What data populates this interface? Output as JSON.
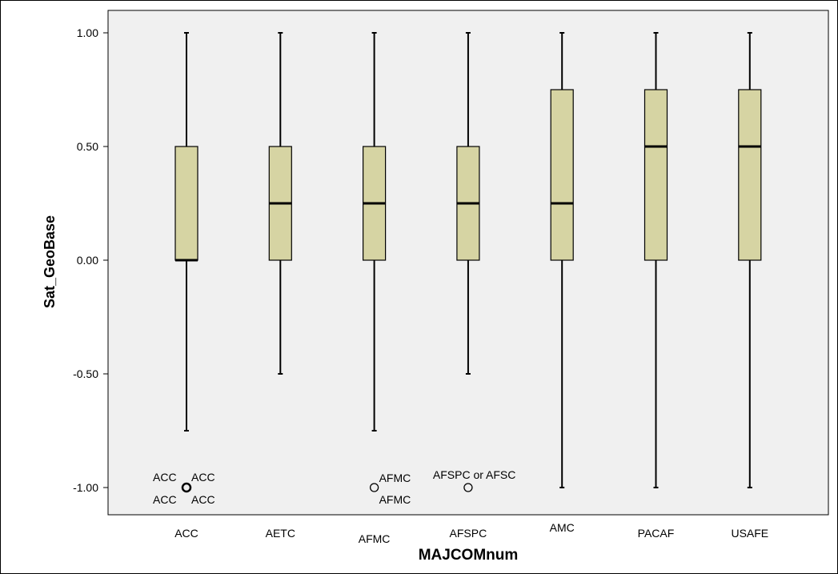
{
  "chart_data": {
    "type": "boxplot",
    "xlabel": "MAJCOMnum",
    "ylabel": "Sat_GeoBase",
    "ylim": [
      -1.12,
      1.12
    ],
    "yticks": [
      1.0,
      0.5,
      0.0,
      -0.5,
      -1.0
    ],
    "ytick_labels": [
      "1.00",
      "0.50",
      "0.00",
      "-0.50",
      "-1.00"
    ],
    "grid": false,
    "colors": {
      "box_fill": "#d6d4a3",
      "plot_bg": "#f0f0f0",
      "stroke": "#000000"
    },
    "categories": [
      "ACC",
      "AETC",
      "AFMC",
      "AFSPC",
      "AMC",
      "PACAF",
      "USAFE"
    ],
    "boxes": [
      {
        "min": -0.75,
        "q1": 0.0,
        "median": 0.0,
        "q3": 0.5,
        "max": 1.0,
        "outliers": [
          {
            "value": -1.0,
            "labels": [
              "ACC",
              "ACC",
              "ACC",
              "ACC"
            ]
          }
        ]
      },
      {
        "min": -0.5,
        "q1": 0.0,
        "median": 0.25,
        "q3": 0.5,
        "max": 1.0,
        "outliers": []
      },
      {
        "min": -0.75,
        "q1": 0.0,
        "median": 0.25,
        "q3": 0.5,
        "max": 1.0,
        "outliers": [
          {
            "value": -1.0,
            "labels": [
              "AFMC",
              "AFMC"
            ]
          }
        ]
      },
      {
        "min": -0.5,
        "q1": 0.0,
        "median": 0.25,
        "q3": 0.5,
        "max": 1.0,
        "outliers": [
          {
            "value": -1.0,
            "labels": [
              "AFSPC or AFSC"
            ]
          }
        ]
      },
      {
        "min": -1.0,
        "q1": 0.0,
        "median": 0.25,
        "q3": 0.75,
        "max": 1.0,
        "outliers": []
      },
      {
        "min": -1.0,
        "q1": 0.0,
        "median": 0.5,
        "q3": 0.75,
        "max": 1.0,
        "outliers": []
      },
      {
        "min": -1.0,
        "q1": 0.0,
        "median": 0.5,
        "q3": 0.75,
        "max": 1.0,
        "outliers": []
      }
    ]
  }
}
